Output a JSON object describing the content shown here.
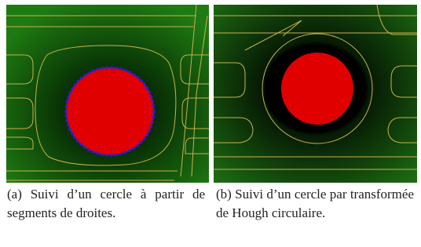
{
  "figures": [
    {
      "caption": "(a) Suivi d’un cercle à partir de segments de droites."
    },
    {
      "caption": "(b) Suivi d’un cercle par transformée de Hough circulaire."
    }
  ]
}
